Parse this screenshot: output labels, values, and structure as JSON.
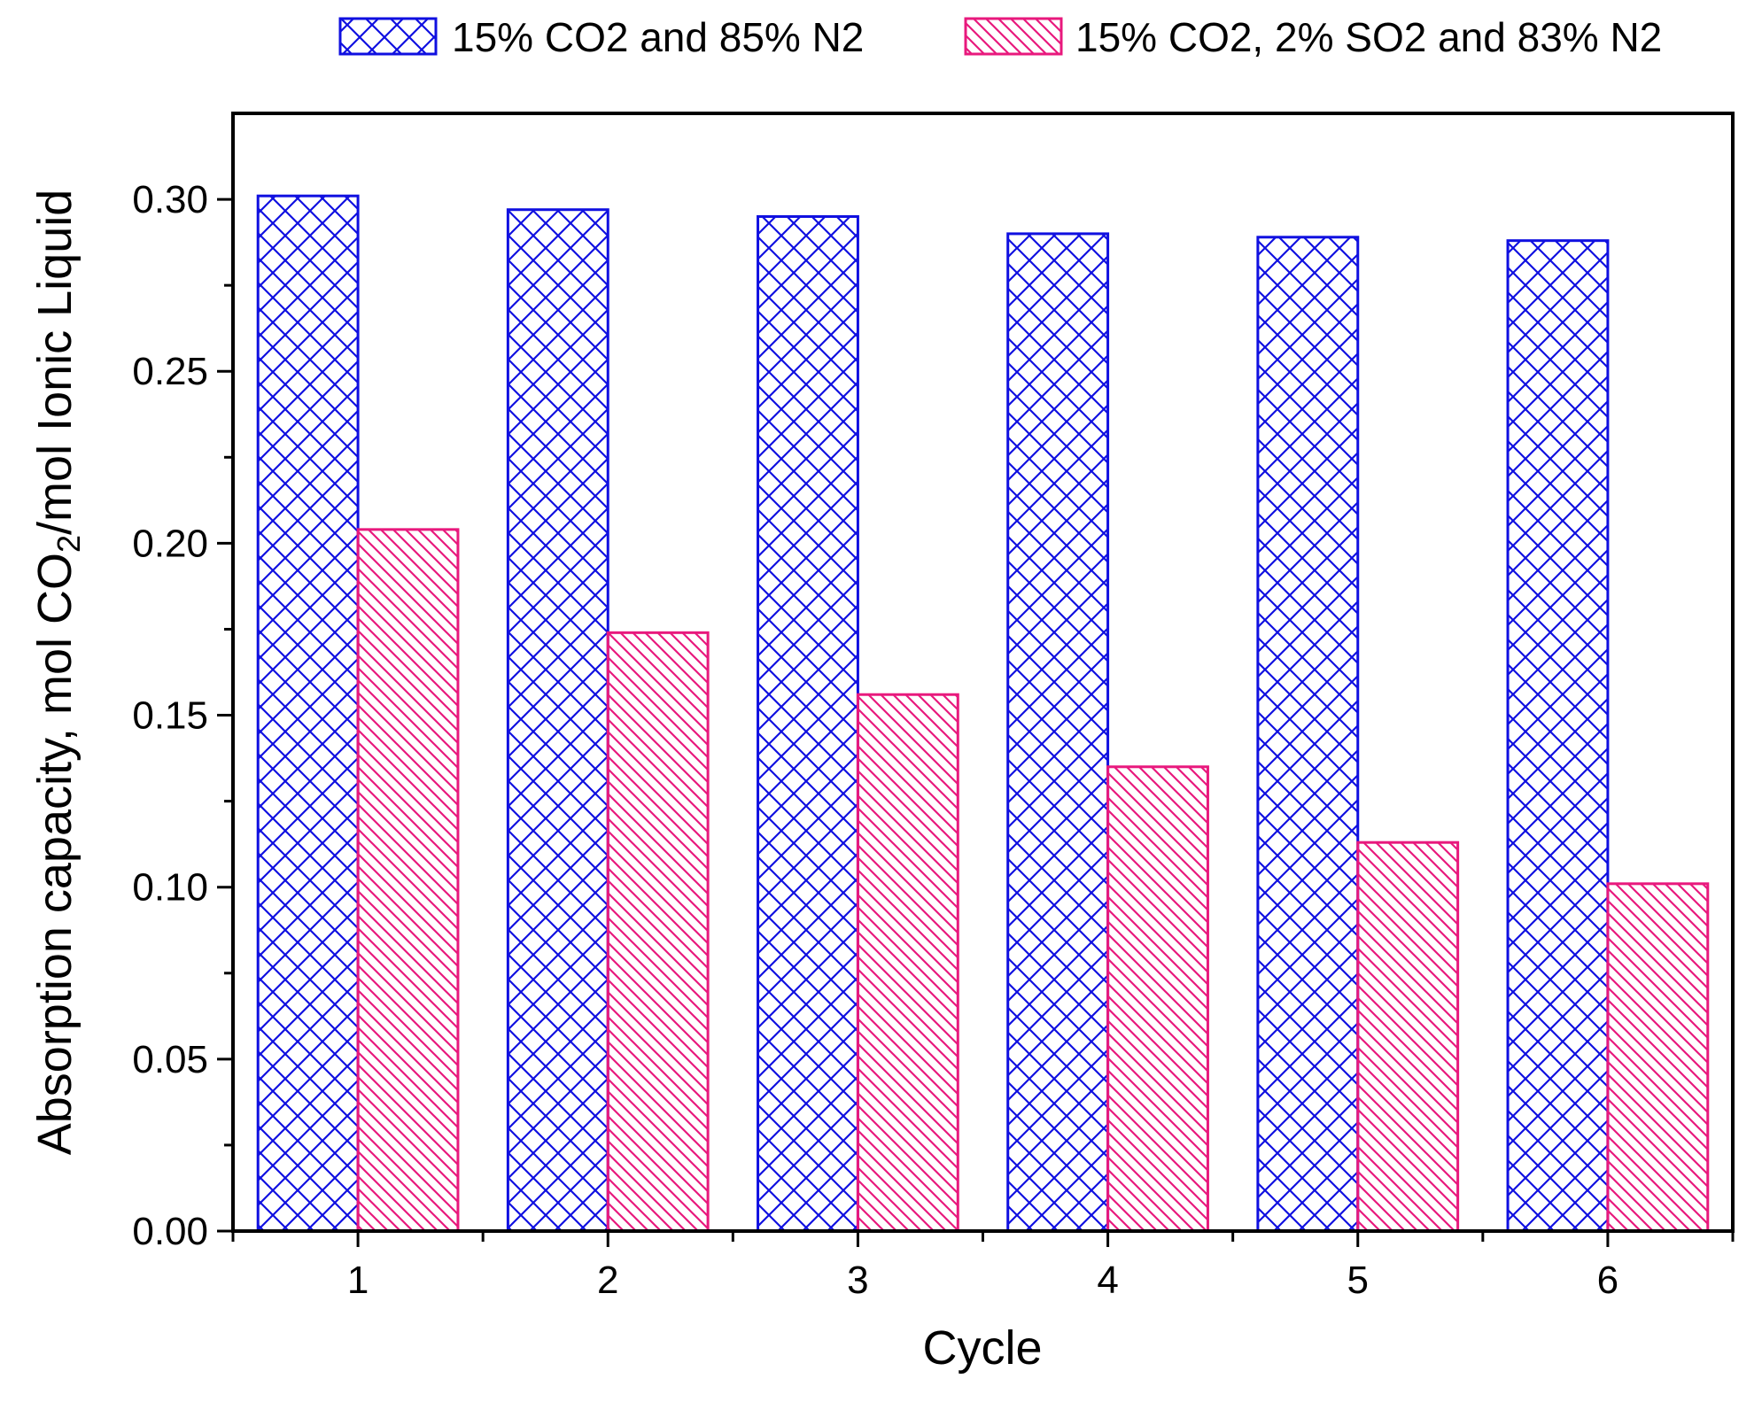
{
  "chart_data": {
    "type": "bar",
    "title": "",
    "xlabel": "Cycle",
    "ylabel_parts": [
      "Absorption capacity, mol CO",
      "2",
      "/mol Ionic Liquid"
    ],
    "categories": [
      "1",
      "2",
      "3",
      "4",
      "5",
      "6"
    ],
    "series": [
      {
        "name": "15% CO2 and 85% N2",
        "color": "#1010e0",
        "pattern": "crosshatch",
        "values": [
          0.301,
          0.297,
          0.295,
          0.29,
          0.289,
          0.288
        ]
      },
      {
        "name": "15% CO2, 2% SO2 and 83% N2",
        "color": "#e8197d",
        "pattern": "diagonal",
        "values": [
          0.204,
          0.174,
          0.156,
          0.135,
          0.113,
          0.101
        ]
      }
    ],
    "ylim": [
      0,
      0.325
    ],
    "yticks": [
      0.0,
      0.05,
      0.1,
      0.15,
      0.2,
      0.25,
      0.3
    ],
    "ytick_labels": [
      "0.00",
      "0.05",
      "0.10",
      "0.15",
      "0.20",
      "0.25",
      "0.30"
    ],
    "legend_position": "top",
    "grid": false
  }
}
